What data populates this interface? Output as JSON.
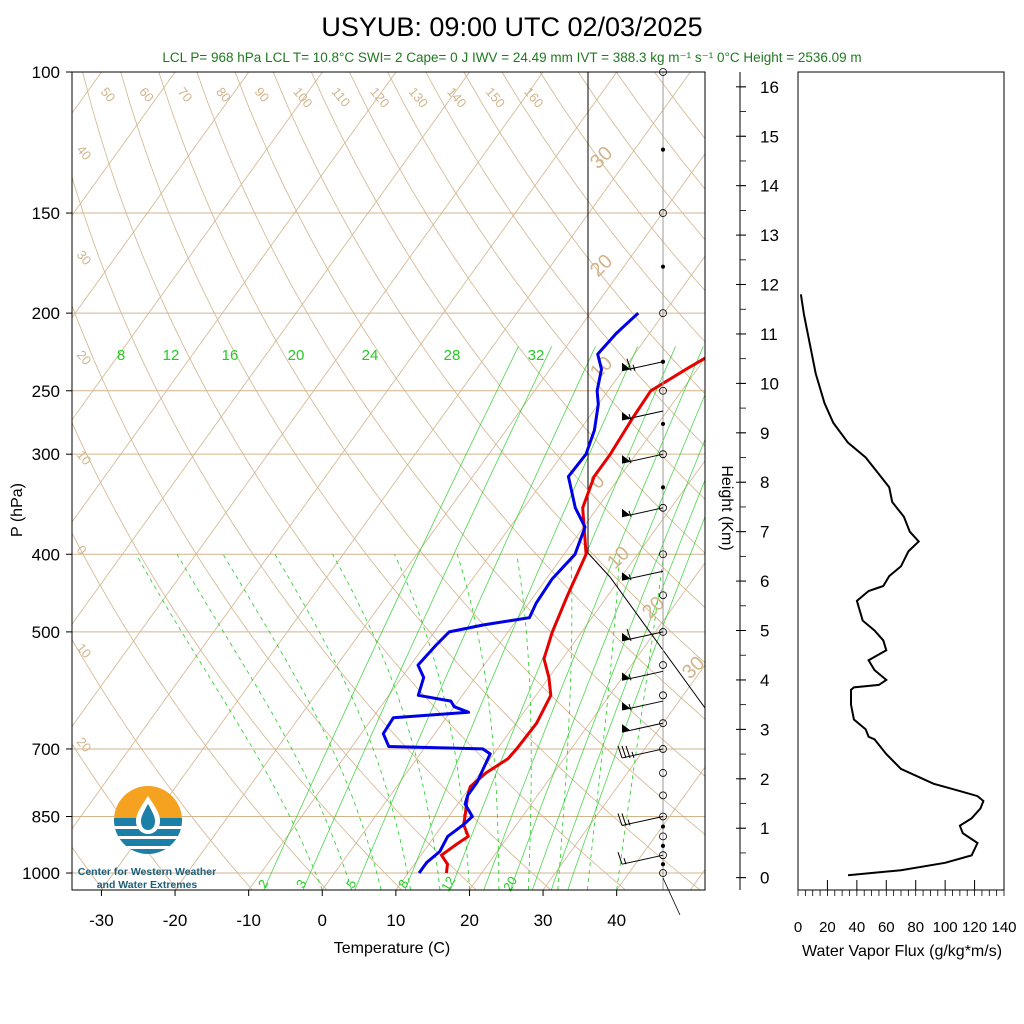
{
  "header": {
    "title": "USYUB: 09:00 UTC 02/03/2025",
    "subtitle": "LCL P= 968 hPa  LCL T= 10.8°C  SWI= 2  Cape= 0 J  IWV = 24.49 mm  IVT = 388.3 kg m⁻¹ s⁻¹  0°C Height = 2536.09 m"
  },
  "logo": {
    "line1": "Center for Western Weather",
    "line2": "and Water Extremes",
    "colors": {
      "sun": "#f4a21f",
      "water": "#1b7fa8",
      "drop": "#ffffff"
    }
  },
  "colors": {
    "temperature": "#e60000",
    "dewpoint": "#0000e6",
    "isotherm_adiabat": "#d2b48c",
    "mixing_ratio": "#22cc22",
    "flux": "#000000"
  },
  "chart_data": [
    {
      "type": "line",
      "name": "skew-t",
      "title": "USYUB: 09:00 UTC 02/03/2025",
      "xlabel": "Temperature (C)",
      "ylabel": "P (hPa)",
      "x_ticks": [
        -30,
        -20,
        -10,
        0,
        10,
        20,
        30,
        40
      ],
      "y_ticks": [
        100,
        150,
        200,
        250,
        300,
        400,
        500,
        700,
        850,
        1000
      ],
      "xlim": [
        -34,
        52
      ],
      "ylim": [
        1050,
        100
      ],
      "y_scale": "log",
      "skew_lines": "dry adiabats, isotherms and mixing ratio lines",
      "adiabat_labels": [
        "50",
        "60",
        "70",
        "80",
        "90",
        "100",
        "110",
        "120",
        "130",
        "140",
        "150",
        "160"
      ],
      "isotherm_labels": [
        "40",
        "30",
        "20",
        "10",
        "0",
        "10",
        "20"
      ],
      "right_isotherm_labels": [
        "30",
        "20",
        "10",
        "0",
        "10",
        "20",
        "30"
      ],
      "mixing_ratio_top_labels": [
        "8",
        "12",
        "16",
        "20",
        "24",
        "28",
        "32"
      ],
      "mixing_ratio_bottom_labels": [
        "2",
        "3",
        "5",
        "8",
        "12",
        "20"
      ],
      "series": [
        {
          "name": "Temperature",
          "points": [
            {
              "p": 1000,
              "t": 15.2
            },
            {
              "p": 975,
              "t": 14.5
            },
            {
              "p": 950,
              "t": 12.8
            },
            {
              "p": 920,
              "t": 13.8
            },
            {
              "p": 900,
              "t": 14.6
            },
            {
              "p": 870,
              "t": 12.8
            },
            {
              "p": 850,
              "t": 12.2
            },
            {
              "p": 820,
              "t": 11.2
            },
            {
              "p": 800,
              "t": 10.5
            },
            {
              "p": 780,
              "t": 10.0
            },
            {
              "p": 750,
              "t": 10.8
            },
            {
              "p": 720,
              "t": 12.4
            },
            {
              "p": 700,
              "t": 12.6
            },
            {
              "p": 650,
              "t": 12.8
            },
            {
              "p": 600,
              "t": 12.0
            },
            {
              "p": 570,
              "t": 10.0
            },
            {
              "p": 540,
              "t": 7.5
            },
            {
              "p": 500,
              "t": 6.0
            },
            {
              "p": 450,
              "t": 4.5
            },
            {
              "p": 400,
              "t": 3.0
            },
            {
              "p": 350,
              "t": -2.0
            },
            {
              "p": 320,
              "t": -3.5
            },
            {
              "p": 300,
              "t": -3.5
            },
            {
              "p": 270,
              "t": -4.0
            },
            {
              "p": 250,
              "t": -4.2
            },
            {
              "p": 235,
              "t": -1.5
            },
            {
              "p": 225,
              "t": 0.5
            },
            {
              "p": 215,
              "t": 2.5
            },
            {
              "p": 200,
              "t": 3.8
            }
          ]
        },
        {
          "name": "Dewpoint",
          "points": [
            {
              "p": 1000,
              "t": 11.5
            },
            {
              "p": 970,
              "t": 11.5
            },
            {
              "p": 940,
              "t": 12.2
            },
            {
              "p": 900,
              "t": 11.8
            },
            {
              "p": 870,
              "t": 12.8
            },
            {
              "p": 850,
              "t": 13.2
            },
            {
              "p": 820,
              "t": 11.0
            },
            {
              "p": 800,
              "t": 10.5
            },
            {
              "p": 770,
              "t": 10.5
            },
            {
              "p": 740,
              "t": 10.0
            },
            {
              "p": 710,
              "t": 9.5
            },
            {
              "p": 700,
              "t": 8.0
            },
            {
              "p": 695,
              "t": -5.0
            },
            {
              "p": 670,
              "t": -7.0
            },
            {
              "p": 640,
              "t": -7.2
            },
            {
              "p": 630,
              "t": 2.5
            },
            {
              "p": 620,
              "t": 0.0
            },
            {
              "p": 610,
              "t": -1.0
            },
            {
              "p": 600,
              "t": -6.0
            },
            {
              "p": 570,
              "t": -7.0
            },
            {
              "p": 550,
              "t": -9.0
            },
            {
              "p": 520,
              "t": -8.5
            },
            {
              "p": 500,
              "t": -8.0
            },
            {
              "p": 490,
              "t": -4.0
            },
            {
              "p": 480,
              "t": 1.5
            },
            {
              "p": 460,
              "t": 1.0
            },
            {
              "p": 430,
              "t": 0.8
            },
            {
              "p": 400,
              "t": 1.5
            },
            {
              "p": 370,
              "t": 0.2
            },
            {
              "p": 350,
              "t": -3.0
            },
            {
              "p": 320,
              "t": -7.0
            },
            {
              "p": 300,
              "t": -6.8
            },
            {
              "p": 280,
              "t": -8.0
            },
            {
              "p": 260,
              "t": -10.0
            },
            {
              "p": 250,
              "t": -11.5
            },
            {
              "p": 235,
              "t": -13.0
            },
            {
              "p": 225,
              "t": -15.0
            },
            {
              "p": 212,
              "t": -14.5
            },
            {
              "p": 200,
              "t": -13.5
            }
          ]
        }
      ]
    },
    {
      "type": "line",
      "name": "wind-barbs",
      "description_values": [
        {
          "p": 230,
          "speed_kt": 65
        },
        {
          "p": 265,
          "speed_kt": 55
        },
        {
          "p": 300,
          "speed_kt": 55
        },
        {
          "p": 350,
          "speed_kt": 55
        },
        {
          "p": 420,
          "speed_kt": 55
        },
        {
          "p": 500,
          "speed_kt": 60
        },
        {
          "p": 560,
          "speed_kt": 55
        },
        {
          "p": 610,
          "speed_kt": 55
        },
        {
          "p": 650,
          "speed_kt": 50
        },
        {
          "p": 700,
          "speed_kt": 35
        },
        {
          "p": 850,
          "speed_kt": 25
        },
        {
          "p": 950,
          "speed_kt": 15
        }
      ]
    },
    {
      "type": "line",
      "name": "water-vapor-flux",
      "xlabel": "Water Vapor Flux (g/kg*m/s)",
      "ylabel": "Height (Km)",
      "x_ticks": [
        0,
        20,
        40,
        60,
        80,
        100,
        120,
        140
      ],
      "y_ticks": [
        0,
        1,
        2,
        3,
        4,
        5,
        6,
        7,
        8,
        9,
        10,
        11,
        12,
        13,
        14,
        15,
        16
      ],
      "xlim": [
        0,
        140
      ],
      "ylim": [
        -0.25,
        16.3
      ],
      "x": [
        34,
        70,
        100,
        118,
        122,
        112,
        110,
        118,
        124,
        126,
        122,
        110,
        92,
        70,
        60,
        52,
        48,
        46,
        38,
        36,
        36,
        38,
        55,
        60,
        52,
        48,
        60,
        58,
        52,
        44,
        42,
        40,
        48,
        58,
        62,
        70,
        75,
        82,
        76,
        72,
        64,
        62,
        54,
        46,
        34,
        24,
        18,
        12,
        8,
        4,
        2
      ],
      "y": [
        0.05,
        0.15,
        0.3,
        0.45,
        0.7,
        0.9,
        1.05,
        1.2,
        1.4,
        1.55,
        1.65,
        1.75,
        1.9,
        2.2,
        2.5,
        2.8,
        2.85,
        3.0,
        3.2,
        3.5,
        3.8,
        3.85,
        3.9,
        4.0,
        4.2,
        4.4,
        4.6,
        4.8,
        5.0,
        5.2,
        5.4,
        5.6,
        5.8,
        5.9,
        6.1,
        6.3,
        6.6,
        6.8,
        7.0,
        7.3,
        7.6,
        7.9,
        8.2,
        8.5,
        8.8,
        9.2,
        9.6,
        10.2,
        10.8,
        11.4,
        11.8
      ]
    }
  ]
}
